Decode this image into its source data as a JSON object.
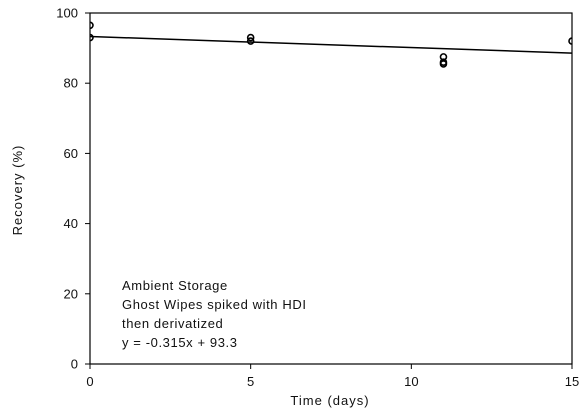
{
  "chart_data": {
    "type": "scatter",
    "title": "",
    "xlabel": "Time (days)",
    "ylabel": "Recovery (%)",
    "xlim": [
      0,
      15
    ],
    "ylim": [
      0,
      100
    ],
    "xticks": [
      0,
      5,
      10,
      15
    ],
    "yticks": [
      0,
      20,
      40,
      60,
      80,
      100
    ],
    "grid": false,
    "series": [
      {
        "points": [
          {
            "x": 0,
            "y": 96.5
          },
          {
            "x": 0,
            "y": 93.0
          },
          {
            "x": 5,
            "y": 93.0
          },
          {
            "x": 5,
            "y": 92.0
          },
          {
            "x": 11,
            "y": 87.5
          },
          {
            "x": 11,
            "y": 86.0
          },
          {
            "x": 11,
            "y": 85.5
          },
          {
            "x": 15,
            "y": 92.0
          }
        ]
      }
    ],
    "trendline": {
      "slope": -0.315,
      "intercept": 93.3
    },
    "annotations": [
      "Ambient Storage",
      "Ghost Wipes spiked with HDI",
      "then derivatized",
      "y = -0.315x + 93.3"
    ],
    "colors": {
      "marks": "#000000",
      "axes": "#000000",
      "text": "#111111"
    }
  }
}
